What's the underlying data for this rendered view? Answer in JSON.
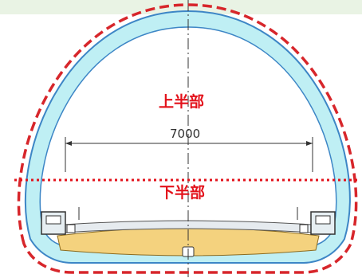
{
  "labels": {
    "upper_half": "上半部",
    "lower_half": "下半部"
  },
  "dimension": {
    "width_label": "7000"
  },
  "colors": {
    "lining_cyan": "#bfeff4",
    "invert_fill": "#f4d27e",
    "boundary_red": "#d7262b",
    "header_band": "#e9f3e4"
  }
}
